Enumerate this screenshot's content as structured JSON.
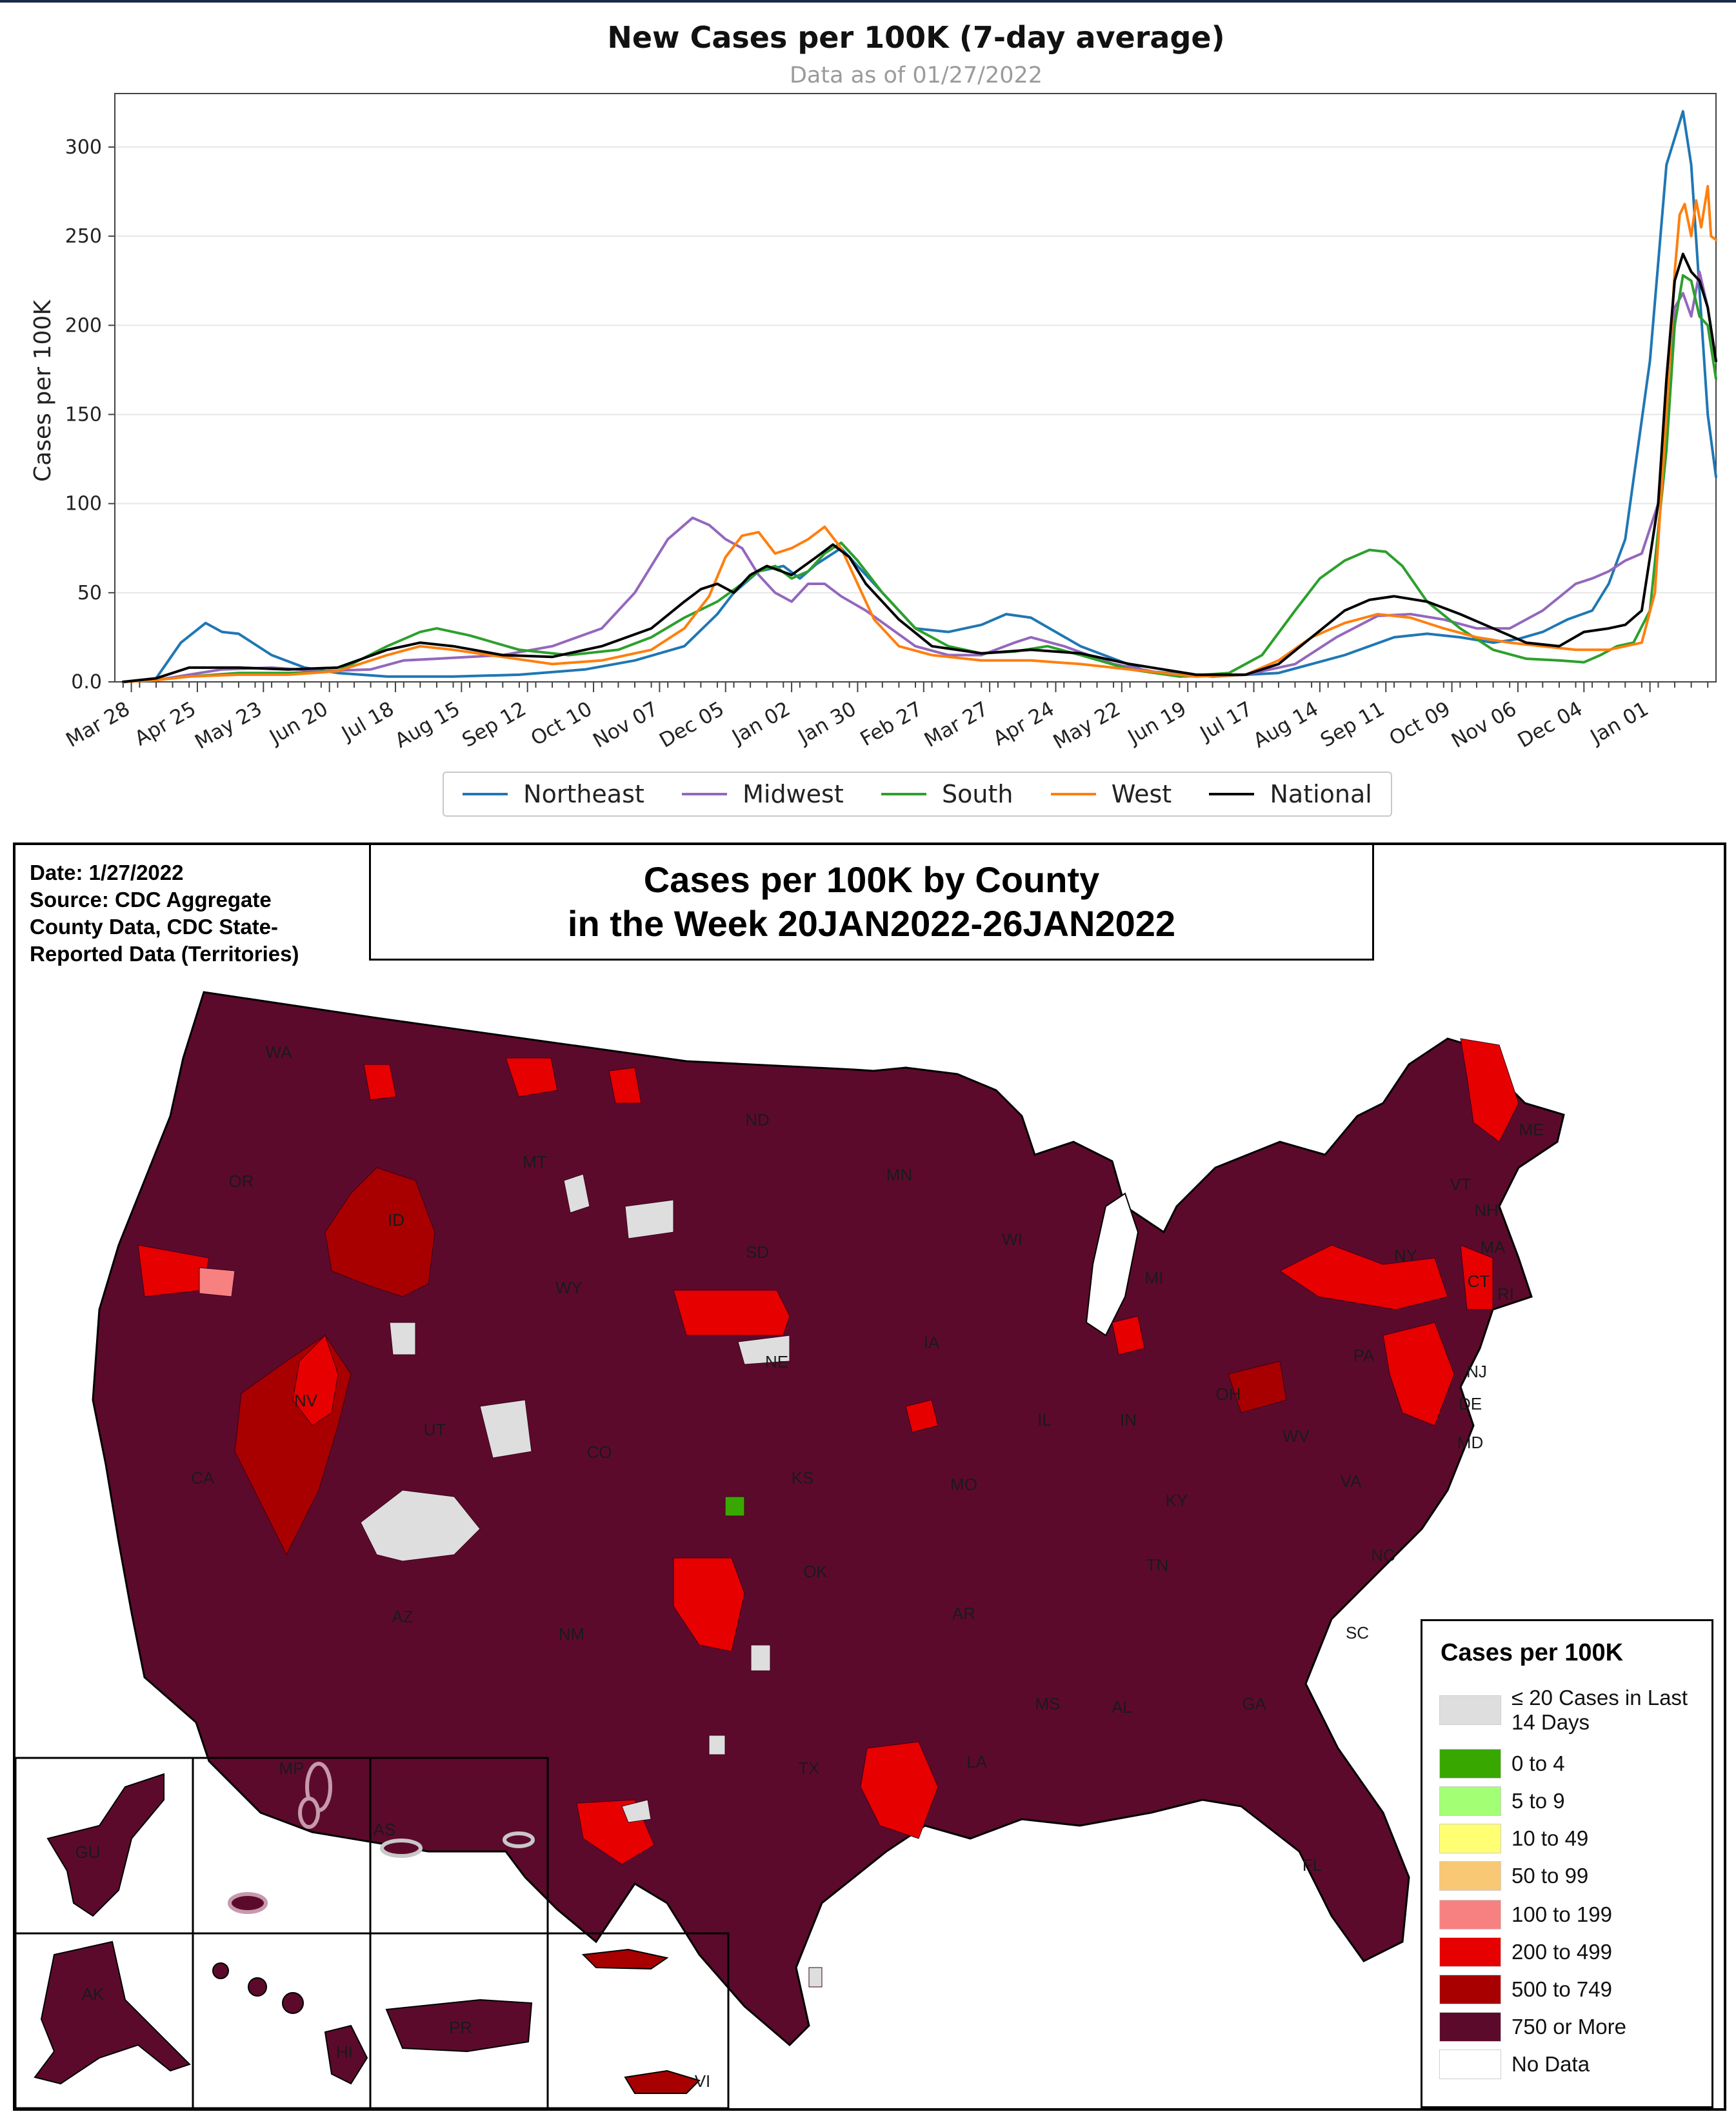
{
  "chart_data": [
    {
      "type": "line",
      "title": "New Cases per 100K (7-day average)",
      "subtitle": "Data as of 01/27/2022",
      "xlabel": "",
      "ylabel": "Cases per 100K",
      "ylim": [
        0,
        330
      ],
      "yticks": [
        0.0,
        50,
        100,
        150,
        200,
        250,
        300
      ],
      "ytick_labels": [
        "0.0",
        "50",
        "100",
        "150",
        "200",
        "250",
        "300"
      ],
      "grid": "horizontal",
      "legend_position": "bottom-center",
      "x_tick_labels": [
        "Mar 28",
        "Apr 25",
        "May 23",
        "Jun 20",
        "Jul 18",
        "Aug 15",
        "Sep 12",
        "Oct 10",
        "Nov 07",
        "Dec 05",
        "Jan 02",
        "Jan 30",
        "Feb 27",
        "Mar 27",
        "Apr 24",
        "May 22",
        "Jun 19",
        "Jul 17",
        "Aug 14",
        "Sep 11",
        "Oct 09",
        "Nov 06",
        "Dec 04",
        "Jan 01"
      ],
      "x_tick_positions": [
        0.5,
        4.5,
        8.5,
        12.5,
        16.5,
        20.5,
        24.5,
        28.5,
        32.5,
        36.5,
        40.5,
        44.5,
        48.5,
        52.5,
        56.5,
        60.5,
        64.5,
        68.5,
        72.5,
        76.5,
        80.5,
        84.5,
        88.5,
        92.5
      ],
      "xlim": [
        -0.5,
        96.5
      ],
      "series": [
        {
          "name": "Northeast",
          "color": "#1f77b4",
          "x": [
            0,
            2,
            3.5,
            5,
            6,
            7,
            9,
            11,
            13,
            16,
            20,
            24,
            28,
            31,
            34,
            36,
            37,
            38.5,
            40,
            41,
            42,
            43.5,
            45,
            46.5,
            48,
            50,
            52,
            53.5,
            55,
            58,
            62,
            66,
            70,
            74,
            77,
            79,
            81,
            83,
            84.5,
            86,
            87.5,
            89,
            90,
            91,
            92.5,
            93.5,
            94.5,
            95,
            95.5,
            96,
            96.5
          ],
          "y": [
            0,
            2,
            22,
            33,
            28,
            27,
            15,
            8,
            5,
            3,
            3,
            4,
            7,
            12,
            20,
            38,
            50,
            62,
            65,
            58,
            66,
            75,
            60,
            45,
            30,
            28,
            32,
            38,
            36,
            20,
            6,
            3,
            5,
            15,
            25,
            27,
            25,
            22,
            24,
            28,
            35,
            40,
            55,
            80,
            180,
            290,
            320,
            290,
            220,
            150,
            115
          ]
        },
        {
          "name": "Midwest",
          "color": "#9467bd",
          "x": [
            0,
            2,
            4,
            6,
            9,
            12,
            15,
            17,
            19,
            23,
            26,
            29,
            31,
            33,
            34.5,
            35.5,
            36.5,
            37.5,
            38.5,
            39.5,
            40.5,
            41.5,
            42.5,
            43.5,
            45,
            46.5,
            48,
            50,
            52,
            54,
            55,
            57,
            60,
            64,
            68,
            71,
            73.5,
            76,
            78,
            80,
            82,
            84,
            86,
            88,
            89,
            90,
            91,
            92,
            93,
            93.5,
            94,
            94.5,
            95,
            95.5,
            96,
            96.5
          ],
          "y": [
            0,
            1,
            4,
            7,
            8,
            6,
            7,
            12,
            13,
            15,
            20,
            30,
            50,
            80,
            92,
            88,
            80,
            75,
            60,
            50,
            45,
            55,
            55,
            48,
            40,
            30,
            20,
            15,
            15,
            22,
            25,
            20,
            10,
            3,
            4,
            10,
            25,
            37,
            38,
            35,
            30,
            30,
            40,
            55,
            58,
            62,
            68,
            72,
            100,
            160,
            210,
            218,
            205,
            230,
            210,
            180
          ]
        },
        {
          "name": "South",
          "color": "#2ca02c",
          "x": [
            0,
            2,
            4,
            7,
            10,
            13,
            16,
            18,
            19,
            21,
            24,
            27,
            30,
            32,
            34,
            36,
            37.5,
            38.5,
            39.5,
            40.5,
            41.5,
            42.5,
            43.5,
            44.5,
            46,
            48,
            50,
            52,
            54,
            56,
            58,
            61,
            64,
            67,
            69,
            71,
            72.5,
            74,
            75.5,
            76.5,
            77.5,
            79,
            81,
            83,
            85,
            87,
            88.5,
            89.5,
            90.5,
            91.5,
            92.5,
            93.5,
            94,
            94.5,
            95,
            95.5,
            96,
            96.5
          ],
          "y": [
            0,
            1,
            3,
            5,
            5,
            6,
            20,
            28,
            30,
            26,
            18,
            15,
            18,
            25,
            36,
            45,
            55,
            62,
            65,
            58,
            62,
            72,
            78,
            68,
            50,
            30,
            20,
            16,
            17,
            20,
            15,
            7,
            3,
            5,
            15,
            40,
            58,
            68,
            74,
            73,
            65,
            45,
            30,
            18,
            13,
            12,
            11,
            15,
            20,
            22,
            40,
            130,
            200,
            228,
            225,
            205,
            200,
            170
          ]
        },
        {
          "name": "West",
          "color": "#ff7f0e",
          "x": [
            0,
            2,
            4,
            7,
            10,
            13,
            16,
            18,
            20,
            23,
            26,
            29,
            32,
            34,
            35.5,
            36.5,
            37.5,
            38.5,
            39.5,
            40.5,
            41.5,
            42.5,
            43.5,
            44.5,
            45.5,
            47,
            49,
            52,
            55,
            58,
            61,
            65,
            68,
            70,
            72,
            74,
            76,
            78,
            80,
            82,
            84,
            86,
            88,
            90,
            91,
            92,
            92.8,
            93.5,
            94,
            94.3,
            94.6,
            95,
            95.3,
            95.6,
            96,
            96.2,
            96.5
          ],
          "y": [
            0,
            1,
            3,
            4,
            4,
            6,
            15,
            20,
            18,
            14,
            10,
            12,
            18,
            30,
            48,
            70,
            82,
            84,
            72,
            75,
            80,
            87,
            75,
            55,
            35,
            20,
            15,
            12,
            12,
            10,
            7,
            3,
            4,
            12,
            25,
            33,
            38,
            36,
            30,
            25,
            22,
            20,
            18,
            18,
            20,
            22,
            50,
            150,
            230,
            262,
            268,
            250,
            270,
            255,
            278,
            250,
            248
          ]
        },
        {
          "name": "National",
          "color": "#000000",
          "x": [
            0,
            2,
            4,
            7,
            10,
            13,
            16,
            18,
            20,
            23,
            26,
            29,
            32,
            34,
            35,
            36,
            37,
            38,
            39,
            40.5,
            42,
            43,
            44,
            45,
            47,
            49,
            52,
            55,
            58,
            61,
            65,
            68,
            70,
            72,
            74,
            75.5,
            77,
            79,
            81,
            83,
            85,
            87,
            88.5,
            90,
            91,
            92,
            93,
            93.5,
            94,
            94.5,
            95,
            95.5,
            96,
            96.5
          ],
          "y": [
            0,
            2,
            8,
            8,
            7,
            8,
            18,
            22,
            20,
            15,
            14,
            20,
            30,
            45,
            52,
            55,
            50,
            60,
            65,
            60,
            70,
            77,
            70,
            55,
            35,
            20,
            16,
            18,
            16,
            10,
            4,
            4,
            10,
            25,
            40,
            46,
            48,
            45,
            38,
            30,
            22,
            20,
            28,
            30,
            32,
            40,
            100,
            170,
            225,
            240,
            230,
            225,
            210,
            180
          ]
        }
      ]
    },
    {
      "type": "choropleth",
      "title_lines": [
        "Cases per 100K by County",
        "in the Week 20JAN2022-26JAN2022"
      ],
      "meta_text": "Date: 1/27/2022\nSource: CDC Aggregate\nCounty Data, CDC State-\nReported Data (Territories)",
      "legend_title": "Cases per 100K",
      "legend": [
        {
          "label": "≤ 20 Cases in Last 14 Days",
          "color": "#dedede"
        },
        {
          "label": "0 to 4",
          "color": "#38a800"
        },
        {
          "label": "5 to 9",
          "color": "#a3ff73"
        },
        {
          "label": "10 to 49",
          "color": "#ffff73"
        },
        {
          "label": "50 to 99",
          "color": "#f9c874"
        },
        {
          "label": "100 to 199",
          "color": "#f78181"
        },
        {
          "label": "200 to 499",
          "color": "#e60000"
        },
        {
          "label": "500 to 749",
          "color": "#a80000"
        },
        {
          "label": "750 or More",
          "color": "#5c0a2c"
        },
        {
          "label": "No Data",
          "color": "#ffffff"
        }
      ],
      "state_labels": [
        "WA",
        "OR",
        "CA",
        "ID",
        "NV",
        "MT",
        "WY",
        "UT",
        "AZ",
        "CO",
        "NM",
        "ND",
        "SD",
        "NE",
        "KS",
        "OK",
        "TX",
        "MN",
        "IA",
        "MO",
        "AR",
        "LA",
        "WI",
        "IL",
        "MS",
        "MI",
        "IN",
        "KY",
        "TN",
        "AL",
        "OH",
        "GA",
        "WV",
        "VA",
        "NC",
        "SC",
        "FL",
        "PA",
        "NY",
        "ME",
        "NH",
        "VT",
        "MA",
        "CT",
        "RI",
        "NJ",
        "DE",
        "MD",
        "GU",
        "MP",
        "AS",
        "AK",
        "HI",
        "PR",
        "VI"
      ]
    }
  ]
}
